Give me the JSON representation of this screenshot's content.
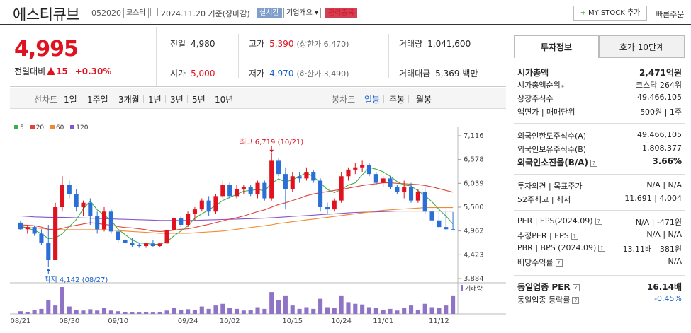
{
  "header": {
    "name": "에스티큐브",
    "code": "052020",
    "market_badge": "코스닥",
    "date": "2024.11.20 기준(장마감)",
    "realtime_badge": "실시간",
    "company_badge": "기업개요 ▾",
    "watch_badge": "관리종목",
    "mystock_label": "MY STOCK 추가",
    "quick_label": "빠른주문"
  },
  "price": {
    "current": "4,995",
    "change_label": "전일대비",
    "change_amount": "15",
    "change_pct": "+0.30%"
  },
  "stats": {
    "prev_label": "전일",
    "prev": "4,980",
    "high_label": "고가",
    "high": "5,390",
    "upper_limit": "(상한가 6,470)",
    "volume_label": "거래량",
    "volume": "1,041,600",
    "open_label": "시가",
    "open": "5,000",
    "low_label": "저가",
    "low": "4,970",
    "lower_limit": "(하한가 3,490)",
    "amount_label": "거래대금",
    "amount": "5,369 백만"
  },
  "periodbar": {
    "line_label": "선차트",
    "periods": [
      "1일",
      "1주일",
      "3개월",
      "1년",
      "3년",
      "5년",
      "10년"
    ],
    "candle_label": "봉차트",
    "candles": [
      "일봉",
      "주봉",
      "월봉"
    ]
  },
  "chart_data": {
    "type": "candlestick",
    "legend": [
      "5",
      "20",
      "60",
      "120"
    ],
    "colors": {
      "up": "#e0121f",
      "down": "#2a6fd6",
      "ma5": "#3fae49",
      "ma20": "#e0443a",
      "ma60": "#f0892f",
      "ma120": "#8855cc",
      "volume": "#8e73c6"
    },
    "y_ticks": [
      "7,116",
      "6,578",
      "6,039",
      "5,500",
      "4,962",
      "4,423",
      "3,884"
    ],
    "ylim": [
      3884,
      7116
    ],
    "x_ticks": [
      "08/21",
      "08/30",
      "09/10",
      "09/24",
      "10/02",
      "10/15",
      "10/24",
      "11/01",
      "11/12"
    ],
    "high_annotation": "최고 6,719 (10/21)",
    "low_annotation": "최저 4,142 (08/27)",
    "volume_label": "거래량",
    "candles": [
      [
        5150,
        5200,
        4980,
        5000
      ],
      [
        5000,
        5100,
        4900,
        5050
      ],
      [
        5050,
        5080,
        4850,
        4900
      ],
      [
        4900,
        5000,
        4650,
        4700
      ],
      [
        4700,
        5100,
        4142,
        4300
      ],
      [
        4300,
        5600,
        4300,
        5500
      ],
      [
        5500,
        6200,
        5400,
        6000
      ],
      [
        6000,
        6100,
        5700,
        5800
      ],
      [
        5800,
        5900,
        5400,
        5500
      ],
      [
        5500,
        5650,
        5300,
        5600
      ],
      [
        5600,
        5700,
        5100,
        5300
      ],
      [
        5300,
        5400,
        4900,
        5000
      ],
      [
        5000,
        5500,
        4950,
        5400
      ],
      [
        5400,
        5450,
        4900,
        4950
      ],
      [
        4950,
        5000,
        4700,
        4750
      ],
      [
        4750,
        4850,
        4650,
        4700
      ],
      [
        4700,
        4800,
        4600,
        4650
      ],
      [
        4650,
        4700,
        4580,
        4620
      ],
      [
        4620,
        4700,
        4580,
        4680
      ],
      [
        4680,
        4750,
        4600,
        4620
      ],
      [
        4620,
        4700,
        4600,
        4680
      ],
      [
        4680,
        5000,
        4650,
        4980
      ],
      [
        4980,
        5300,
        4950,
        5250
      ],
      [
        5250,
        5300,
        5050,
        5100
      ],
      [
        5100,
        5400,
        5050,
        5350
      ],
      [
        5350,
        5500,
        5200,
        5450
      ],
      [
        5450,
        5700,
        5400,
        5650
      ],
      [
        5650,
        5750,
        5300,
        5400
      ],
      [
        5400,
        5800,
        5350,
        5750
      ],
      [
        5750,
        6100,
        5700,
        6000
      ],
      [
        6000,
        6050,
        5700,
        5750
      ],
      [
        5750,
        6000,
        5700,
        5900
      ],
      [
        5900,
        6000,
        5800,
        5950
      ],
      [
        5950,
        6000,
        5750,
        5800
      ],
      [
        5800,
        6100,
        5700,
        6050
      ],
      [
        6050,
        6100,
        5650,
        5700
      ],
      [
        5700,
        6719,
        5650,
        6550
      ],
      [
        6550,
        6600,
        6200,
        6250
      ],
      [
        6250,
        6400,
        5450,
        5900
      ],
      [
        5900,
        6300,
        5850,
        6200
      ],
      [
        6200,
        6300,
        6050,
        6150
      ],
      [
        6150,
        6400,
        6100,
        6300
      ],
      [
        6300,
        6350,
        6050,
        6100
      ],
      [
        6100,
        6150,
        5400,
        5500
      ],
      [
        5500,
        5600,
        5350,
        5450
      ],
      [
        5450,
        5700,
        5400,
        5650
      ],
      [
        5650,
        6300,
        5600,
        6200
      ],
      [
        6200,
        6400,
        6100,
        6350
      ],
      [
        6350,
        6500,
        6250,
        6400
      ],
      [
        6400,
        6550,
        6300,
        6450
      ],
      [
        6450,
        6500,
        6200,
        6250
      ],
      [
        6250,
        6300,
        6000,
        6050
      ],
      [
        6050,
        6200,
        5950,
        6150
      ],
      [
        6150,
        6200,
        5900,
        5950
      ],
      [
        5950,
        6000,
        5800,
        5850
      ],
      [
        5850,
        6100,
        5700,
        5950
      ],
      [
        5950,
        6050,
        5600,
        5650
      ],
      [
        5650,
        5900,
        5600,
        5850
      ],
      [
        5850,
        5950,
        5350,
        5400
      ],
      [
        5400,
        5500,
        5100,
        5200
      ],
      [
        5200,
        5450,
        5000,
        5050
      ],
      [
        5050,
        5400,
        4970,
        5000
      ],
      [
        5000,
        5390,
        4970,
        4995
      ]
    ],
    "volumes": [
      8,
      5,
      12,
      15,
      40,
      25,
      80,
      22,
      12,
      10,
      14,
      10,
      18,
      10,
      8,
      6,
      5,
      4,
      5,
      4,
      5,
      10,
      18,
      12,
      14,
      12,
      22,
      15,
      25,
      30,
      18,
      15,
      10,
      12,
      20,
      15,
      65,
      40,
      55,
      25,
      15,
      20,
      15,
      45,
      20,
      18,
      55,
      35,
      30,
      28,
      20,
      18,
      12,
      15,
      10,
      18,
      25,
      12,
      30,
      20,
      18,
      25,
      55
    ],
    "ma5": [
      5080,
      5020,
      4980,
      4900,
      4790,
      4800,
      4900,
      5060,
      5220,
      5460,
      5640,
      5440,
      5320,
      5200,
      5000,
      4880,
      4760,
      4690,
      4680,
      4660,
      4660,
      4720,
      4850,
      4960,
      5080,
      5250,
      5350,
      5440,
      5540,
      5650,
      5720,
      5790,
      5860,
      5880,
      5900,
      5870,
      6040,
      6140,
      6070,
      6120,
      6200,
      6280,
      6190,
      6050,
      5900,
      5830,
      5900,
      6000,
      6050,
      6230,
      6400,
      6360,
      6300,
      6200,
      6080,
      6000,
      5980,
      5870,
      5760,
      5620,
      5450,
      5300,
      5120
    ],
    "ma20": [
      5100,
      5090,
      5080,
      5050,
      5000,
      4990,
      5020,
      5060,
      5090,
      5120,
      5150,
      5130,
      5110,
      5090,
      5060,
      5040,
      5030,
      5010,
      4990,
      4960,
      4950,
      4960,
      4980,
      5000,
      5010,
      5040,
      5080,
      5110,
      5150,
      5190,
      5230,
      5260,
      5300,
      5350,
      5400,
      5440,
      5500,
      5560,
      5600,
      5650,
      5700,
      5760,
      5800,
      5830,
      5850,
      5880,
      5900,
      5930,
      5960,
      5990,
      6010,
      6030,
      6050,
      6050,
      6040,
      6030,
      6020,
      6010,
      5990,
      5960,
      5920,
      5880,
      5840
    ],
    "ma60": [
      5050,
      5040,
      5030,
      5020,
      5000,
      4990,
      4990,
      4990,
      4990,
      4990,
      4990,
      4990,
      4990,
      4980,
      4970,
      4960,
      4950,
      4940,
      4930,
      4920,
      4910,
      4910,
      4910,
      4910,
      4910,
      4920,
      4930,
      4940,
      4950,
      4960,
      4980,
      5000,
      5020,
      5040,
      5060,
      5080,
      5100,
      5130,
      5150,
      5170,
      5190,
      5210,
      5230,
      5250,
      5270,
      5290,
      5310,
      5330,
      5350,
      5370,
      5390,
      5410,
      5430,
      5440,
      5450,
      5460,
      5470,
      5480,
      5490,
      5490,
      5490,
      5490,
      5490
    ],
    "ma120": [
      5300,
      5290,
      5280,
      5275,
      5270,
      5270,
      5270,
      5265,
      5260,
      5255,
      5250,
      5245,
      5240,
      5235,
      5230,
      5225,
      5220,
      5215,
      5210,
      5205,
      5200,
      5200,
      5200,
      5200,
      5200,
      5200,
      5205,
      5210,
      5215,
      5220,
      5225,
      5230,
      5235,
      5240,
      5245,
      5250,
      5260,
      5270,
      5280,
      5290,
      5300,
      5310,
      5320,
      5330,
      5340,
      5350,
      5360,
      5370,
      5380,
      5385,
      5390,
      5395,
      5400,
      5405,
      5410,
      5410,
      5410,
      5410,
      5410,
      5410,
      5410,
      5410,
      5410
    ]
  },
  "right_panel": {
    "tabs": [
      "투자정보",
      "호가 10단계"
    ],
    "market_cap_label": "시가총액",
    "market_cap": "2,471억원",
    "rank_label": "시가총액순위",
    "rank": "코스닥 264위",
    "shares_label": "상장주식수",
    "shares": "49,466,105",
    "par_label": "액면가 | 매매단위",
    "par": "500원 | 1주",
    "foreign_limit_label": "외국인한도주식수(A)",
    "foreign_limit": "49,466,105",
    "foreign_hold_label": "외국인보유주식수(B)",
    "foreign_hold": "1,808,377",
    "foreign_rate_label": "외국인소진율(B/A)",
    "foreign_rate": "3.66%",
    "opinion_label": "투자의견 | 목표주가",
    "opinion": "N/A | N/A",
    "w52_label": "52주최고 | 최저",
    "w52": "11,691 | 4,004",
    "per_label": "PER | EPS(2024.09)",
    "per": "N/A | -471원",
    "est_per_label": "추정PER | EPS",
    "est_per": "N/A | N/A",
    "pbr_label": "PBR | BPS (2024.09)",
    "pbr": "13.11배 | 381원",
    "dividend_label": "배당수익률",
    "dividend": "N/A",
    "sector_per_label": "동일업종 PER",
    "sector_per": "16.14배",
    "sector_change_label": "동일업종 등락률",
    "sector_change": "-0.45%"
  }
}
